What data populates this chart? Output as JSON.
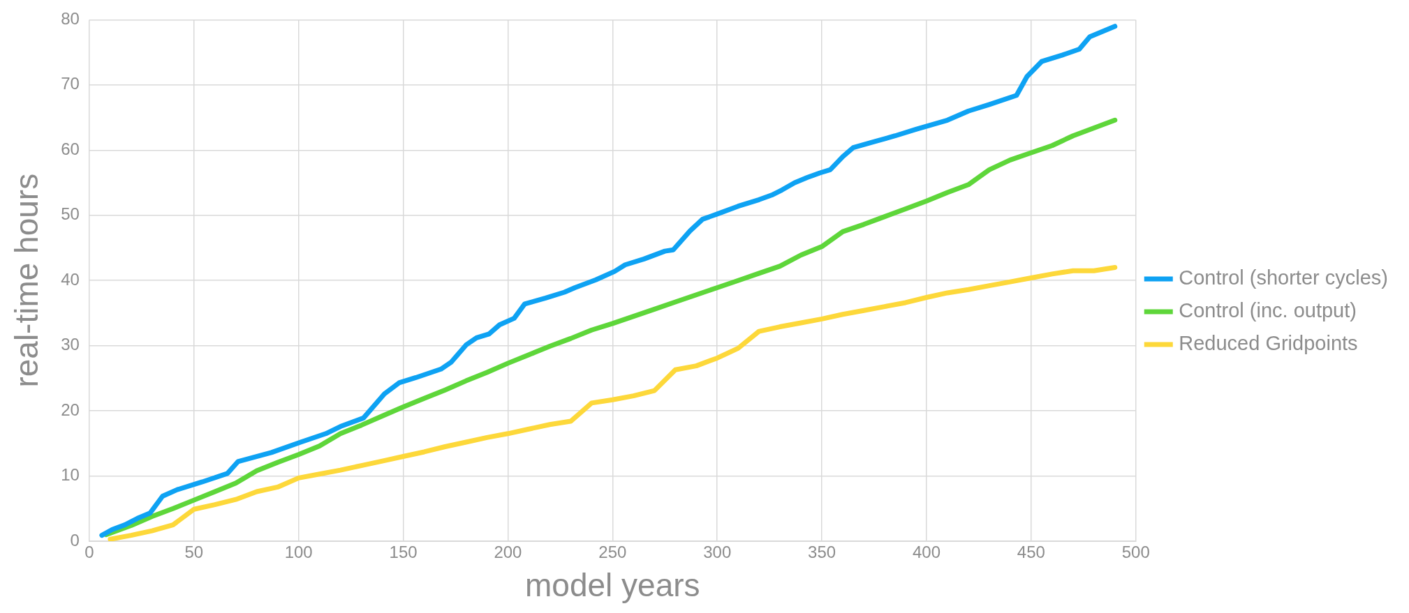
{
  "chart_data": {
    "type": "line",
    "xlabel": "model years",
    "ylabel": "real-time hours",
    "xlim": [
      0,
      500
    ],
    "xticks": [
      0,
      50,
      100,
      150,
      200,
      250,
      300,
      350,
      400,
      450,
      500
    ],
    "ylim": [
      0,
      80
    ],
    "yticks": [
      0,
      10,
      20,
      30,
      40,
      50,
      60,
      70,
      80
    ],
    "grid": true,
    "legend": "right",
    "marker": "none",
    "line_style": "solid",
    "series": [
      {
        "name": "Control (shorter cycles)",
        "color": "#0ea2f3",
        "x": [
          6,
          11,
          17,
          23,
          29,
          35,
          42,
          54,
          66,
          71,
          87,
          101,
          113,
          120,
          131,
          141,
          148,
          156,
          168,
          173,
          180,
          185,
          191,
          196,
          203,
          208,
          218,
          227,
          232,
          242,
          251,
          256,
          265,
          275,
          279,
          287,
          293,
          300,
          310,
          320,
          326,
          331,
          337,
          343,
          349,
          354,
          360,
          365,
          375,
          385,
          395,
          410,
          420,
          430,
          443,
          448,
          455,
          465,
          473,
          478,
          490
        ],
        "values": [
          0.9,
          1.8,
          2.5,
          3.5,
          4.3,
          6.9,
          7.9,
          9.1,
          10.4,
          12.2,
          13.6,
          15.2,
          16.5,
          17.6,
          18.9,
          22.6,
          24.3,
          25.1,
          26.4,
          27.5,
          30.1,
          31.2,
          31.8,
          33.2,
          34.2,
          36.4,
          37.3,
          38.2,
          38.9,
          40.1,
          41.4,
          42.4,
          43.3,
          44.5,
          44.7,
          47.6,
          49.4,
          50.2,
          51.4,
          52.4,
          53.1,
          53.9,
          55,
          55.8,
          56.5,
          57,
          59,
          60.4,
          61.3,
          62.2,
          63.2,
          64.6,
          66,
          67,
          68.4,
          71.3,
          73.6,
          74.6,
          75.5,
          77.4,
          79
        ]
      },
      {
        "name": "Control (inc. output)",
        "color": "#5ed63a",
        "x": [
          8,
          20,
          30,
          40,
          50,
          60,
          70,
          80,
          90,
          100,
          110,
          120,
          130,
          140,
          150,
          160,
          170,
          180,
          190,
          200,
          210,
          220,
          230,
          240,
          250,
          260,
          270,
          280,
          290,
          300,
          310,
          320,
          330,
          340,
          350,
          360,
          370,
          380,
          390,
          400,
          410,
          420,
          430,
          440,
          450,
          460,
          470,
          480,
          490
        ],
        "values": [
          1,
          2.4,
          3.8,
          5,
          6.3,
          7.6,
          8.9,
          10.8,
          12.1,
          13.3,
          14.6,
          16.5,
          17.8,
          19.2,
          20.6,
          21.9,
          23.2,
          24.6,
          25.9,
          27.3,
          28.6,
          29.9,
          31.1,
          32.4,
          33.4,
          34.5,
          35.6,
          36.7,
          37.8,
          38.9,
          40,
          41.1,
          42.2,
          43.9,
          45.2,
          47.5,
          48.6,
          49.8,
          51,
          52.2,
          53.5,
          54.7,
          57,
          58.5,
          59.6,
          60.7,
          62.2,
          63.4,
          64.6
        ]
      },
      {
        "name": "Reduced Gridpoints",
        "color": "#fdd83a",
        "x": [
          10,
          20,
          30,
          40,
          50,
          60,
          70,
          80,
          90,
          100,
          110,
          120,
          130,
          140,
          150,
          160,
          170,
          180,
          190,
          200,
          210,
          220,
          230,
          240,
          250,
          260,
          270,
          280,
          290,
          300,
          310,
          320,
          330,
          340,
          350,
          360,
          370,
          380,
          390,
          400,
          410,
          420,
          430,
          440,
          450,
          460,
          470,
          480,
          490
        ],
        "values": [
          0.3,
          0.9,
          1.6,
          2.5,
          4.9,
          5.6,
          6.4,
          7.6,
          8.3,
          9.7,
          10.3,
          10.9,
          11.6,
          12.3,
          13,
          13.7,
          14.5,
          15.2,
          15.9,
          16.5,
          17.2,
          17.9,
          18.4,
          21.2,
          21.7,
          22.3,
          23.1,
          26.3,
          26.9,
          28.1,
          29.6,
          32.2,
          32.9,
          33.5,
          34.1,
          34.8,
          35.4,
          36,
          36.6,
          37.4,
          38.1,
          38.6,
          39.2,
          39.8,
          40.4,
          41,
          41.5,
          41.5,
          42
        ]
      }
    ]
  }
}
